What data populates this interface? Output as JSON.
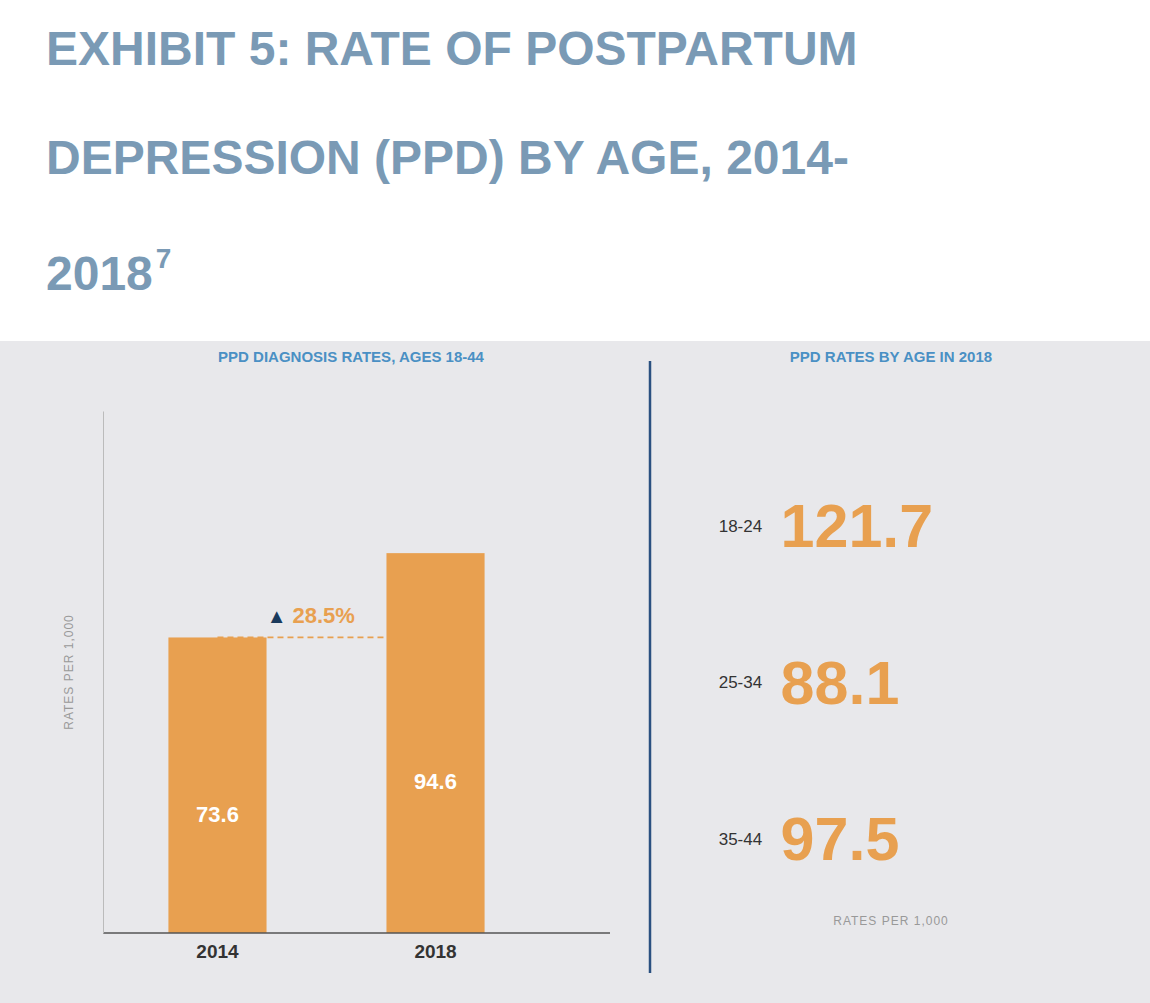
{
  "chart_data": [
    {
      "type": "bar",
      "title": [
        "EXHIBIT 5: RATE OF POSTPARTUM",
        "DEPRESSION (PPD) BY AGE, 2014-",
        "2018"
      ],
      "subtitle": "PPD DIAGNOSIS RATES, AGES 18-44",
      "ylabel": "RATES PER 1,000",
      "categories": [
        "2014",
        "2018"
      ],
      "values": [
        73.6,
        94.6
      ],
      "color": "#e8a050",
      "ylim": [
        0,
        130
      ],
      "yticks": [],
      "tick_labels": "x",
      "data_labels": true,
      "annotations": [
        {
          "text": "7"
        },
        {
          "text": "▲",
          "color": "#1a3a5c"
        },
        {
          "text": "28.5%",
          "color": "#e8a050"
        }
      ]
    },
    {
      "type": "text",
      "subtitle": "PPD RATES BY AGE IN 2018",
      "categories": [
        "18-24",
        "25-34",
        "35-44"
      ],
      "values": [
        121.7,
        88.1,
        97.5
      ],
      "color": "#e8a050",
      "data_labels": true,
      "annotations": [
        {
          "text": "RATES PER 1,000"
        }
      ]
    }
  ]
}
